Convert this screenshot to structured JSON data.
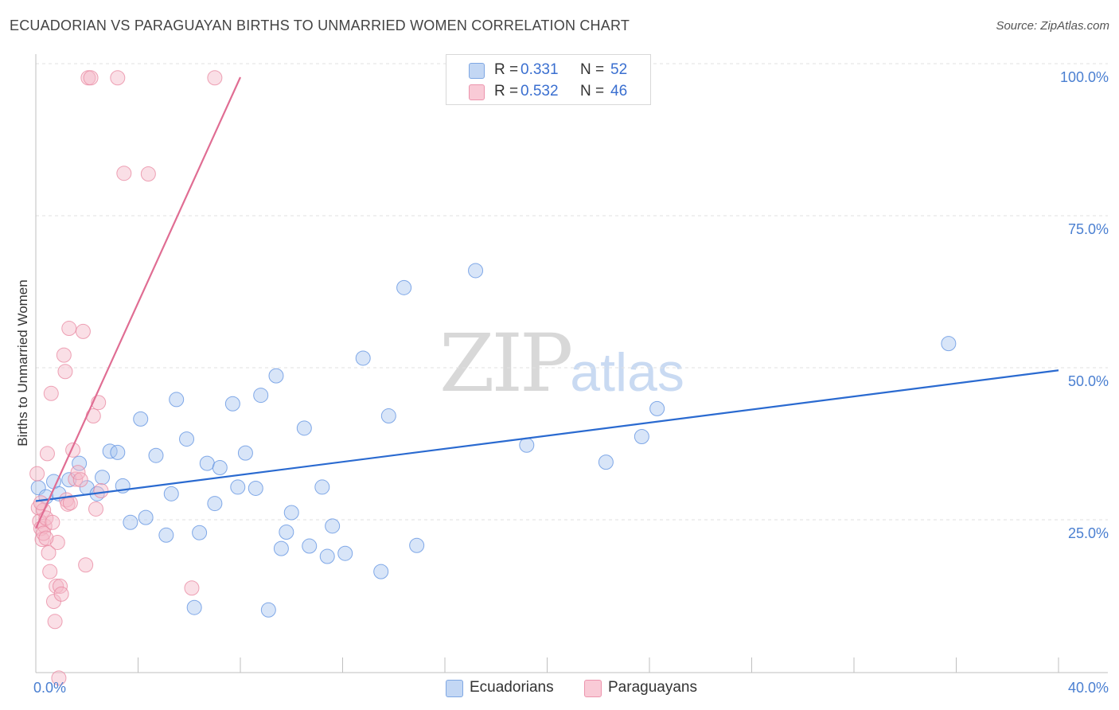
{
  "title": "ECUADORIAN VS PARAGUAYAN BIRTHS TO UNMARRIED WOMEN CORRELATION CHART",
  "source": "Source: ZipAtlas.com",
  "watermark": {
    "zip": "ZIP",
    "atlas": "atlas"
  },
  "legend": {
    "rows": [
      {
        "r_label": "R =",
        "r_value": "0.331",
        "n_label": "N =",
        "n_value": "52",
        "color": "#a9c6ef"
      },
      {
        "r_label": "R =",
        "r_value": "0.532",
        "n_label": "N =",
        "n_value": "46",
        "color": "#f5b7c8"
      }
    ]
  },
  "bottom_legend": [
    {
      "label": "Ecuadorians",
      "color": "#a9c6ef"
    },
    {
      "label": "Paraguayans",
      "color": "#f5b7c8"
    }
  ],
  "chart_data": {
    "type": "scatter",
    "title": "ECUADORIAN VS PARAGUAYAN BIRTHS TO UNMARRIED WOMEN CORRELATION CHART",
    "xlabel": "",
    "ylabel": "Births to Unmarried Women",
    "xlim": [
      0,
      40
    ],
    "ylim": [
      0,
      102
    ],
    "x_tick_labels": [
      "0.0%",
      "40.0%"
    ],
    "y_ticks": [
      25,
      50,
      75,
      100
    ],
    "y_tick_labels": [
      "25.0%",
      "50.0%",
      "75.0%",
      "100.0%"
    ],
    "grid": true,
    "series": [
      {
        "name": "Ecuadorians",
        "color": "#5b8fe0",
        "fill": "#a9c6ef",
        "trend": {
          "x": [
            0,
            40
          ],
          "y": [
            30.3,
            51.8
          ],
          "color": "#2a6ad0"
        },
        "points": [
          [
            0.1,
            32.5
          ],
          [
            0.4,
            31.0
          ],
          [
            0.7,
            33.5
          ],
          [
            0.9,
            31.5
          ],
          [
            1.3,
            33.8
          ],
          [
            1.7,
            36.5
          ],
          [
            2.0,
            32.5
          ],
          [
            2.4,
            31.5
          ],
          [
            2.6,
            34.2
          ],
          [
            2.9,
            38.5
          ],
          [
            3.2,
            38.3
          ],
          [
            3.4,
            32.8
          ],
          [
            3.7,
            26.8
          ],
          [
            4.1,
            43.8
          ],
          [
            4.3,
            27.6
          ],
          [
            4.7,
            37.8
          ],
          [
            5.1,
            24.7
          ],
          [
            5.3,
            31.5
          ],
          [
            5.5,
            47.0
          ],
          [
            5.9,
            40.5
          ],
          [
            6.2,
            12.8
          ],
          [
            6.4,
            25.1
          ],
          [
            6.7,
            36.5
          ],
          [
            7.0,
            29.9
          ],
          [
            7.2,
            35.8
          ],
          [
            7.7,
            46.3
          ],
          [
            7.9,
            32.6
          ],
          [
            8.2,
            38.2
          ],
          [
            8.6,
            32.4
          ],
          [
            8.8,
            47.7
          ],
          [
            9.1,
            12.4
          ],
          [
            9.4,
            50.9
          ],
          [
            9.6,
            22.5
          ],
          [
            9.8,
            25.2
          ],
          [
            10.0,
            28.4
          ],
          [
            10.5,
            42.3
          ],
          [
            10.7,
            22.9
          ],
          [
            11.2,
            32.6
          ],
          [
            11.4,
            21.2
          ],
          [
            11.6,
            26.2
          ],
          [
            12.1,
            21.7
          ],
          [
            12.8,
            53.8
          ],
          [
            13.5,
            18.7
          ],
          [
            13.8,
            44.3
          ],
          [
            14.4,
            65.4
          ],
          [
            14.9,
            23.0
          ],
          [
            17.2,
            68.2
          ],
          [
            19.2,
            39.5
          ],
          [
            22.3,
            36.7
          ],
          [
            23.7,
            40.9
          ],
          [
            24.3,
            45.5
          ],
          [
            35.7,
            56.2
          ]
        ]
      },
      {
        "name": "Paraguayans",
        "color": "#e8869f",
        "fill": "#f5b7c8",
        "trend": {
          "x": [
            0,
            8.0
          ],
          "y": [
            25.8,
            100.0
          ],
          "color": "#e06d93"
        },
        "points": [
          [
            0.05,
            34.8
          ],
          [
            0.1,
            29.2
          ],
          [
            0.15,
            27.0
          ],
          [
            0.2,
            25.8
          ],
          [
            0.25,
            24.0
          ],
          [
            0.3,
            28.8
          ],
          [
            0.35,
            26.2
          ],
          [
            0.4,
            27.5
          ],
          [
            0.45,
            38.1
          ],
          [
            0.5,
            21.8
          ],
          [
            0.55,
            18.7
          ],
          [
            0.6,
            48.0
          ],
          [
            0.65,
            26.8
          ],
          [
            0.7,
            13.8
          ],
          [
            0.75,
            10.5
          ],
          [
            0.8,
            16.3
          ],
          [
            0.85,
            23.5
          ],
          [
            0.9,
            1.2
          ],
          [
            0.95,
            16.3
          ],
          [
            1.0,
            15.0
          ],
          [
            1.1,
            54.3
          ],
          [
            1.15,
            51.6
          ],
          [
            1.2,
            30.5
          ],
          [
            1.25,
            29.8
          ],
          [
            1.3,
            58.7
          ],
          [
            1.35,
            30.0
          ],
          [
            1.45,
            38.7
          ],
          [
            1.55,
            33.9
          ],
          [
            1.65,
            35.0
          ],
          [
            1.75,
            33.8
          ],
          [
            1.85,
            58.2
          ],
          [
            1.95,
            19.8
          ],
          [
            2.05,
            99.9
          ],
          [
            2.15,
            99.9
          ],
          [
            2.25,
            44.3
          ],
          [
            2.35,
            29.0
          ],
          [
            2.45,
            46.5
          ],
          [
            2.55,
            32.0
          ],
          [
            3.2,
            99.9
          ],
          [
            3.45,
            84.2
          ],
          [
            4.4,
            84.1
          ],
          [
            6.1,
            16.0
          ],
          [
            7.0,
            99.9
          ],
          [
            0.2,
            30.0
          ],
          [
            0.3,
            25.0
          ],
          [
            0.4,
            24.2
          ]
        ]
      }
    ]
  }
}
